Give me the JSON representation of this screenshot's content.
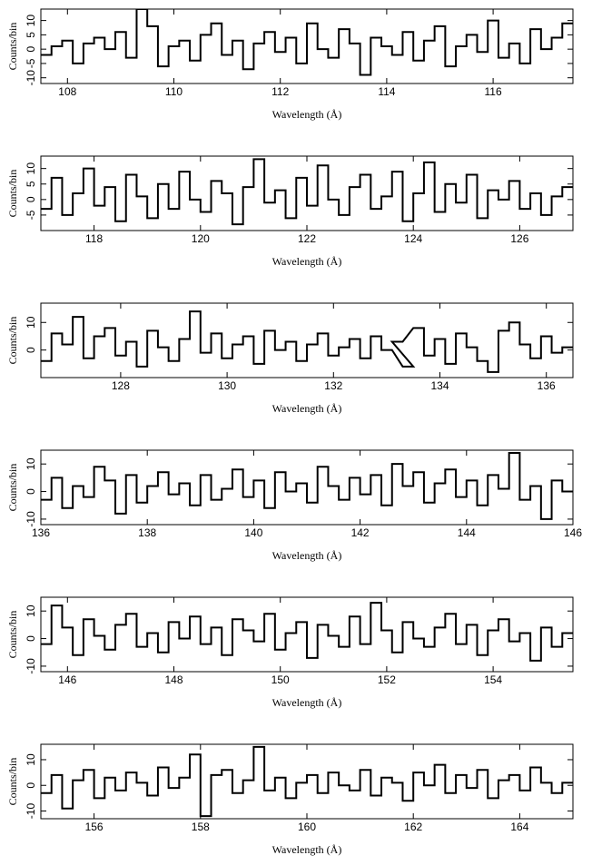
{
  "chart_data": [
    {
      "type": "line",
      "xlabel": "Wavelength (Å)",
      "ylabel": "Counts/bin",
      "xlim": [
        107.5,
        117.5
      ],
      "xticks": [
        108,
        110,
        112,
        114,
        116
      ],
      "ylim": [
        -12,
        14
      ],
      "yticks": [
        -10,
        -5,
        0,
        5,
        10
      ],
      "x": [
        107.6,
        107.8,
        108.0,
        108.2,
        108.4,
        108.6,
        108.8,
        109.0,
        109.2,
        109.4,
        109.6,
        109.8,
        110.0,
        110.2,
        110.4,
        110.6,
        110.8,
        111.0,
        111.2,
        111.4,
        111.6,
        111.8,
        112.0,
        112.2,
        112.4,
        112.6,
        112.8,
        113.0,
        113.2,
        113.4,
        113.6,
        113.8,
        114.0,
        114.2,
        114.4,
        114.6,
        114.8,
        115.0,
        115.2,
        115.4,
        115.6,
        115.8,
        116.0,
        116.2,
        116.4,
        116.6,
        116.8,
        117.0,
        117.2,
        117.4
      ],
      "values": [
        -2,
        1,
        3,
        -5,
        2,
        4,
        0,
        6,
        -3,
        14,
        8,
        -6,
        1,
        3,
        -4,
        5,
        9,
        -2,
        3,
        -7,
        2,
        6,
        -1,
        4,
        -5,
        9,
        0,
        -3,
        7,
        2,
        -9,
        4,
        1,
        -2,
        6,
        -4,
        3,
        8,
        -6,
        1,
        5,
        -1,
        10,
        -3,
        2,
        -5,
        7,
        0,
        4,
        9
      ],
      "color": "#000000"
    },
    {
      "type": "line",
      "xlabel": "Wavelength (Å)",
      "ylabel": "Counts/bin",
      "xlim": [
        117,
        127
      ],
      "xticks": [
        118,
        120,
        122,
        124,
        126
      ],
      "ylim": [
        -10,
        14
      ],
      "yticks": [
        -5,
        0,
        5,
        10
      ],
      "x": [
        117.1,
        117.3,
        117.5,
        117.7,
        117.9,
        118.1,
        118.3,
        118.5,
        118.7,
        118.9,
        119.1,
        119.3,
        119.5,
        119.7,
        119.9,
        120.1,
        120.3,
        120.5,
        120.7,
        120.9,
        121.1,
        121.3,
        121.5,
        121.7,
        121.9,
        122.1,
        122.3,
        122.5,
        122.7,
        122.9,
        123.1,
        123.3,
        123.5,
        123.7,
        123.9,
        124.1,
        124.3,
        124.5,
        124.7,
        124.9,
        125.1,
        125.3,
        125.5,
        125.7,
        125.9,
        126.1,
        126.3,
        126.5,
        126.7,
        126.9
      ],
      "values": [
        -3,
        7,
        -5,
        2,
        10,
        -2,
        4,
        -7,
        8,
        1,
        -6,
        5,
        -3,
        9,
        0,
        -4,
        6,
        2,
        -8,
        4,
        13,
        -1,
        3,
        -6,
        7,
        -2,
        11,
        0,
        -5,
        4,
        8,
        -3,
        1,
        9,
        -7,
        2,
        12,
        -4,
        5,
        -1,
        8,
        -6,
        3,
        0,
        6,
        -3,
        2,
        -5,
        1,
        4
      ],
      "color": "#000000"
    },
    {
      "type": "line",
      "xlabel": "Wavelength (Å)",
      "ylabel": "Counts/bin",
      "xlim": [
        126.5,
        136.5
      ],
      "xticks": [
        128,
        130,
        132,
        134,
        136
      ],
      "ylim": [
        -10,
        17
      ],
      "yticks": [
        0,
        10
      ],
      "x": [
        126.6,
        126.8,
        127.0,
        127.2,
        127.4,
        127.6,
        127.8,
        128.0,
        128.2,
        128.4,
        128.6,
        128.8,
        129.0,
        129.2,
        129.4,
        129.6,
        129.8,
        130.0,
        130.2,
        130.4,
        130.6,
        130.8,
        131.0,
        131.2,
        131.4,
        131.6,
        131.8,
        132.0,
        132.2,
        132.4,
        132.6,
        132.8,
        133.0,
        133.4,
        133.2,
        133.6,
        133.8,
        134.0,
        134.2,
        134.4,
        134.6,
        134.8,
        135.0,
        135.2,
        135.4,
        135.6,
        135.8,
        136.0,
        136.2,
        136.4
      ],
      "values": [
        -4,
        6,
        2,
        12,
        -3,
        5,
        8,
        -2,
        3,
        -6,
        7,
        1,
        -4,
        4,
        14,
        -1,
        6,
        -3,
        2,
        5,
        -5,
        7,
        0,
        3,
        -4,
        2,
        6,
        -2,
        1,
        4,
        -3,
        5,
        0,
        -6,
        3,
        8,
        -2,
        4,
        -5,
        6,
        1,
        -4,
        -8,
        7,
        10,
        2,
        -3,
        5,
        -1,
        1
      ],
      "color": "#000000"
    },
    {
      "type": "line",
      "xlabel": "Wavelength (Å)",
      "ylabel": "Counts/bin",
      "xlim": [
        136,
        146
      ],
      "xticks": [
        136,
        138,
        140,
        142,
        144,
        146
      ],
      "ylim": [
        -12,
        15
      ],
      "yticks": [
        -10,
        0,
        10
      ],
      "x": [
        136.1,
        136.3,
        136.5,
        136.7,
        136.9,
        137.1,
        137.3,
        137.5,
        137.7,
        137.9,
        138.1,
        138.3,
        138.5,
        138.7,
        138.9,
        139.1,
        139.3,
        139.5,
        139.7,
        139.9,
        140.1,
        140.3,
        140.5,
        140.7,
        140.9,
        141.1,
        141.3,
        141.5,
        141.7,
        141.9,
        142.1,
        142.3,
        142.5,
        142.7,
        142.9,
        143.1,
        143.3,
        143.5,
        143.7,
        143.9,
        144.1,
        144.3,
        144.5,
        144.7,
        144.9,
        145.1,
        145.3,
        145.5,
        145.7,
        145.9
      ],
      "values": [
        -3,
        5,
        -6,
        2,
        -2,
        9,
        4,
        -8,
        6,
        -4,
        2,
        7,
        -1,
        3,
        -5,
        6,
        -3,
        1,
        8,
        -2,
        4,
        -6,
        7,
        0,
        3,
        -4,
        9,
        2,
        -3,
        5,
        -1,
        6,
        -5,
        10,
        2,
        7,
        -4,
        3,
        8,
        -2,
        4,
        -5,
        6,
        1,
        14,
        -3,
        2,
        -10,
        4,
        0
      ],
      "color": "#000000"
    },
    {
      "type": "line",
      "xlabel": "Wavelength (Å)",
      "ylabel": "Counts/bin",
      "xlim": [
        145.5,
        155.5
      ],
      "xticks": [
        146,
        148,
        150,
        152,
        154
      ],
      "ylim": [
        -12,
        15
      ],
      "yticks": [
        -10,
        0,
        10
      ],
      "x": [
        145.6,
        145.8,
        146.0,
        146.2,
        146.4,
        146.6,
        146.8,
        147.0,
        147.2,
        147.4,
        147.6,
        147.8,
        148.0,
        148.2,
        148.4,
        148.6,
        148.8,
        149.0,
        149.2,
        149.4,
        149.6,
        149.8,
        150.0,
        150.2,
        150.4,
        150.6,
        150.8,
        151.0,
        151.2,
        151.4,
        151.6,
        151.8,
        152.0,
        152.2,
        152.4,
        152.6,
        152.8,
        153.0,
        153.2,
        153.4,
        153.6,
        153.8,
        154.0,
        154.2,
        154.4,
        154.6,
        154.8,
        155.0,
        155.2,
        155.4
      ],
      "values": [
        -2,
        12,
        4,
        -6,
        7,
        1,
        -4,
        5,
        9,
        -3,
        2,
        -5,
        6,
        0,
        8,
        -2,
        4,
        -6,
        7,
        3,
        -1,
        9,
        -4,
        2,
        6,
        -7,
        5,
        1,
        -3,
        8,
        -2,
        13,
        3,
        -5,
        6,
        0,
        -3,
        4,
        9,
        -2,
        5,
        -6,
        3,
        7,
        -1,
        2,
        -8,
        4,
        -3,
        2
      ],
      "color": "#000000"
    },
    {
      "type": "line",
      "xlabel": "Wavelength (Å)",
      "ylabel": "Counts/bin",
      "xlim": [
        155,
        165
      ],
      "xticks": [
        156,
        158,
        160,
        162,
        164
      ],
      "ylim": [
        -13,
        16
      ],
      "yticks": [
        -10,
        0,
        10
      ],
      "x": [
        155.1,
        155.3,
        155.5,
        155.7,
        155.9,
        156.1,
        156.3,
        156.5,
        156.7,
        156.9,
        157.1,
        157.3,
        157.5,
        157.7,
        157.9,
        158.1,
        158.3,
        158.5,
        158.7,
        158.9,
        159.1,
        159.3,
        159.5,
        159.7,
        159.9,
        160.1,
        160.3,
        160.5,
        160.7,
        160.9,
        161.1,
        161.3,
        161.5,
        161.7,
        161.9,
        162.1,
        162.3,
        162.5,
        162.7,
        162.9,
        163.1,
        163.3,
        163.5,
        163.7,
        163.9,
        164.1,
        164.3,
        164.5,
        164.7,
        164.9
      ],
      "values": [
        -3,
        4,
        -9,
        2,
        6,
        -5,
        3,
        -2,
        5,
        1,
        -4,
        7,
        -1,
        3,
        12,
        -12,
        4,
        6,
        -3,
        2,
        15,
        -2,
        3,
        -5,
        1,
        4,
        -3,
        5,
        0,
        -2,
        6,
        -4,
        3,
        1,
        -6,
        5,
        0,
        8,
        -3,
        4,
        -1,
        6,
        -5,
        2,
        4,
        -2,
        7,
        1,
        -3,
        1
      ],
      "color": "#000000"
    }
  ]
}
